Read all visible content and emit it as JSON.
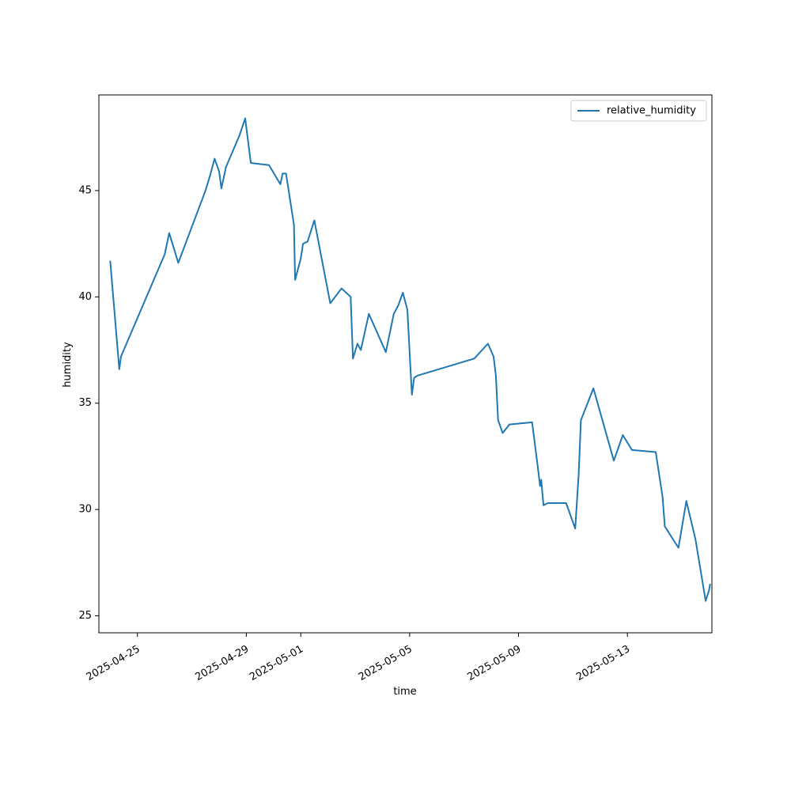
{
  "chart_data": {
    "type": "line",
    "xlabel": "time",
    "ylabel": "humidity",
    "x_axis_type": "date",
    "xlim": [
      "2025-04-23T14:00",
      "2025-05-16T02:30"
    ],
    "ylim": [
      24.2,
      49.5
    ],
    "grid": false,
    "legend_position": "top-right",
    "x_ticks": [
      "2025-04-25",
      "2025-04-29",
      "2025-05-01",
      "2025-05-05",
      "2025-05-09",
      "2025-05-13"
    ],
    "y_ticks": [
      25,
      30,
      35,
      40,
      45
    ],
    "series": [
      {
        "name": "relative_humidity",
        "color": "#1f77b4",
        "x": [
          "2025-04-24T00:00",
          "2025-04-24T08:00",
          "2025-04-24T09:30",
          "2025-04-26T00:00",
          "2025-04-26T04:00",
          "2025-04-26T12:00",
          "2025-04-27T12:00",
          "2025-04-27T16:00",
          "2025-04-27T20:00",
          "2025-04-28T00:00",
          "2025-04-28T02:00",
          "2025-04-28T06:00",
          "2025-04-28T18:00",
          "2025-04-28T23:00",
          "2025-04-29T04:00",
          "2025-04-29T20:00",
          "2025-04-30T06:00",
          "2025-04-30T08:00",
          "2025-04-30T11:00",
          "2025-04-30T18:00",
          "2025-04-30T19:00",
          "2025-05-01T00:00",
          "2025-05-01T02:00",
          "2025-05-01T06:00",
          "2025-05-01T12:00",
          "2025-05-02T02:00",
          "2025-05-02T12:00",
          "2025-05-02T20:00",
          "2025-05-02T22:00",
          "2025-05-03T02:00",
          "2025-05-03T05:00",
          "2025-05-03T12:00",
          "2025-05-04T03:00",
          "2025-05-04T10:00",
          "2025-05-04T14:00",
          "2025-05-04T18:00",
          "2025-05-04T22:00",
          "2025-05-05T02:00",
          "2025-05-05T04:00",
          "2025-05-05T07:00",
          "2025-05-07T09:00",
          "2025-05-07T21:00",
          "2025-05-08T02:00",
          "2025-05-08T04:00",
          "2025-05-08T06:00",
          "2025-05-08T10:00",
          "2025-05-08T16:00",
          "2025-05-09T12:00",
          "2025-05-09T17:00",
          "2025-05-09T19:00",
          "2025-05-09T20:00",
          "2025-05-09T22:00",
          "2025-05-10T02:00",
          "2025-05-10T18:00",
          "2025-05-11T02:00",
          "2025-05-11T05:00",
          "2025-05-11T07:00",
          "2025-05-11T18:00",
          "2025-05-12T12:00",
          "2025-05-12T20:00",
          "2025-05-13T04:00",
          "2025-05-14T01:00",
          "2025-05-14T07:00",
          "2025-05-14T09:00",
          "2025-05-14T21:00",
          "2025-05-15T04:00",
          "2025-05-15T12:00",
          "2025-05-15T21:00",
          "2025-05-16T00:00",
          "2025-05-16T01:00"
        ],
        "y": [
          41.7,
          36.6,
          37.2,
          42.0,
          43.0,
          41.6,
          45.0,
          45.7,
          46.5,
          45.9,
          45.1,
          46.1,
          47.6,
          48.4,
          46.3,
          46.2,
          45.3,
          45.8,
          45.8,
          43.4,
          40.8,
          41.8,
          42.5,
          42.6,
          43.6,
          39.7,
          40.4,
          40.0,
          37.1,
          37.8,
          37.5,
          39.2,
          37.4,
          39.2,
          39.6,
          40.2,
          39.4,
          35.4,
          36.2,
          36.3,
          37.1,
          37.8,
          37.2,
          36.3,
          34.2,
          33.6,
          34.0,
          34.1,
          32.0,
          31.1,
          31.4,
          30.2,
          30.3,
          30.3,
          29.1,
          31.6,
          34.2,
          35.7,
          32.3,
          33.5,
          32.8,
          32.7,
          30.6,
          29.2,
          28.2,
          30.4,
          28.6,
          25.7,
          26.2,
          26.5
        ]
      }
    ]
  }
}
